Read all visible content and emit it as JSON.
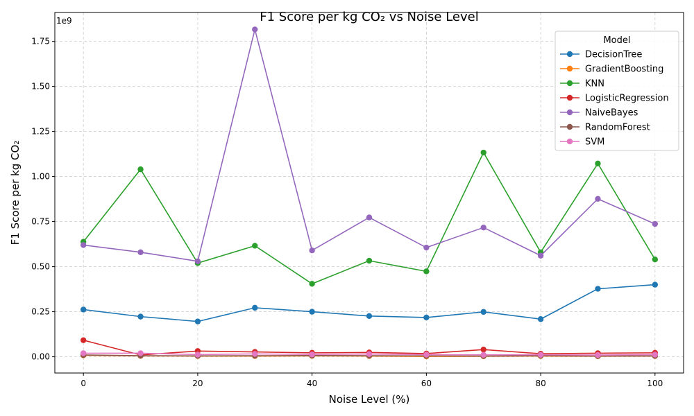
{
  "chart_data": {
    "type": "line",
    "title": "F1 Score per kg CO₂ vs Noise Level",
    "xlabel": "Noise Level (%)",
    "ylabel": "F1 Score per kg CO₂",
    "y_scale_label": "1e9",
    "x": [
      0,
      10,
      20,
      30,
      40,
      50,
      60,
      70,
      80,
      90,
      100
    ],
    "xlim": [
      -5,
      105
    ],
    "ylim": [
      -0.09,
      1.91
    ],
    "x_ticks": [
      0,
      20,
      40,
      60,
      80,
      100
    ],
    "y_ticks": [
      0.0,
      0.25,
      0.5,
      0.75,
      1.0,
      1.25,
      1.5,
      1.75
    ],
    "y_tick_labels": [
      "0.00",
      "0.25",
      "0.50",
      "0.75",
      "1.00",
      "1.25",
      "1.50",
      "1.75"
    ],
    "grid": true,
    "legend": {
      "title": "Model",
      "position": "top-right"
    },
    "series": [
      {
        "name": "DecisionTree",
        "color": "#1f77b4",
        "values": [
          0.262,
          0.223,
          0.196,
          0.272,
          0.25,
          0.226,
          0.218,
          0.249,
          0.209,
          0.377,
          0.4
        ]
      },
      {
        "name": "GradientBoosting",
        "color": "#ff7f0e",
        "values": [
          0.008,
          0.005,
          0.004,
          0.004,
          0.005,
          0.004,
          0.002,
          0.003,
          0.004,
          0.003,
          0.004
        ]
      },
      {
        "name": "KNN",
        "color": "#2ca02c",
        "values": [
          0.638,
          1.04,
          0.52,
          0.616,
          0.405,
          0.533,
          0.474,
          1.133,
          0.58,
          1.072,
          0.54
        ]
      },
      {
        "name": "LogisticRegression",
        "color": "#d62728",
        "values": [
          0.092,
          0.01,
          0.032,
          0.027,
          0.022,
          0.024,
          0.018,
          0.04,
          0.017,
          0.02,
          0.022
        ]
      },
      {
        "name": "NaiveBayes",
        "color": "#9467bd",
        "values": [
          0.62,
          0.58,
          0.53,
          1.816,
          0.59,
          0.773,
          0.606,
          0.717,
          0.561,
          0.876,
          0.737
        ]
      },
      {
        "name": "RandomForest",
        "color": "#8c564b",
        "values": [
          0.01,
          0.006,
          0.005,
          0.006,
          0.007,
          0.006,
          0.005,
          0.004,
          0.006,
          0.004,
          0.005
        ]
      },
      {
        "name": "SVM",
        "color": "#e377c2",
        "values": [
          0.02,
          0.02,
          0.012,
          0.016,
          0.013,
          0.015,
          0.012,
          0.011,
          0.011,
          0.01,
          0.012
        ]
      }
    ]
  }
}
